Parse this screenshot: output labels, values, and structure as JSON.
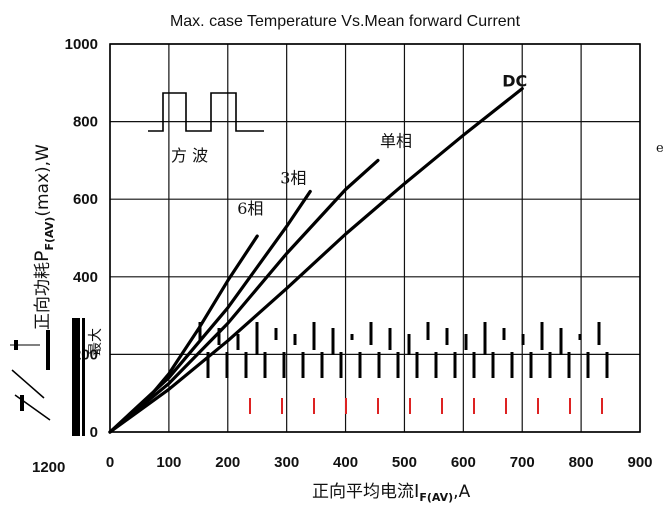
{
  "chart_data": {
    "type": "line",
    "title": "Max. case Temperature Vs.Mean forward Current",
    "xlabel_main": "正向平均电流",
    "xlabel_sym": "I",
    "xlabel_sub": "F(AV)",
    "xlabel_unit": ",A",
    "ylabel_main": "正向功耗",
    "ylabel_sym": "P",
    "ylabel_sub": "F(AV)",
    "ylabel_unit": "(max),W",
    "xlim": [
      0,
      900
    ],
    "ylim": [
      0,
      1000
    ],
    "x_ticks": [
      "0",
      "100",
      "200",
      "300",
      "400",
      "500",
      "600",
      "700",
      "800",
      "900"
    ],
    "y_ticks": [
      "0",
      "200",
      "400",
      "600",
      "800",
      "1000"
    ],
    "grid": true,
    "series": [
      {
        "name": "6相",
        "x": [
          0,
          50,
          100,
          150,
          200,
          250
        ],
        "y": [
          0,
          60,
          150,
          265,
          390,
          505
        ]
      },
      {
        "name": "3相",
        "x": [
          0,
          100,
          200,
          300,
          340
        ],
        "y": [
          0,
          140,
          320,
          530,
          620
        ]
      },
      {
        "name": "单相",
        "x": [
          0,
          100,
          200,
          300,
          400,
          455
        ],
        "y": [
          0,
          125,
          280,
          460,
          625,
          700
        ]
      },
      {
        "name": "DC",
        "x": [
          0,
          100,
          200,
          300,
          400,
          500,
          600,
          700
        ],
        "y": [
          0,
          110,
          235,
          370,
          510,
          640,
          765,
          885
        ]
      }
    ],
    "waveform_label": "方  波",
    "extra_labels": {
      "left_partial_y": "最大",
      "bottom_left_tick": "1200",
      "right_edge_partial": "e"
    }
  },
  "colors": {
    "line": "#000000",
    "background": "#ffffff",
    "text": "#111111"
  }
}
